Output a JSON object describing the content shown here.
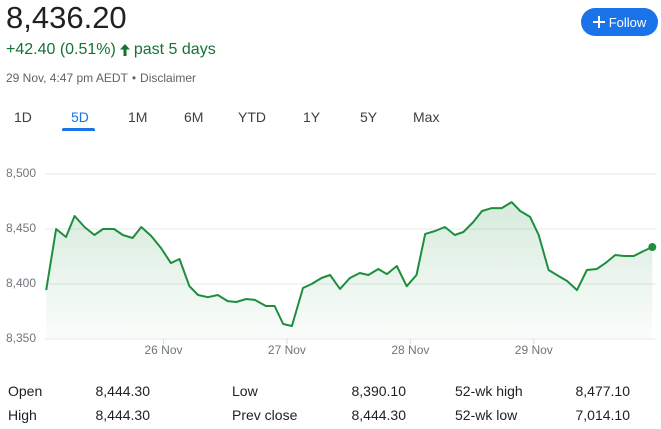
{
  "header": {
    "price": "8,436.20",
    "change": "+42.40 (0.51%)",
    "period": "past 5 days",
    "timestamp": "29 Nov, 4:47 pm AEDT",
    "separator": "•",
    "disclaimer": "Disclaimer",
    "follow": "Follow"
  },
  "tabs": {
    "items": [
      "1D",
      "5D",
      "1M",
      "6M",
      "YTD",
      "1Y",
      "5Y",
      "Max"
    ],
    "selected": "5D"
  },
  "chart_data": {
    "type": "line",
    "x": [
      25.05,
      25.13,
      25.21,
      25.28,
      25.36,
      25.44,
      25.51,
      25.6,
      25.67,
      25.75,
      25.82,
      25.9,
      25.98,
      26.06,
      26.13,
      26.21,
      26.28,
      26.36,
      26.44,
      26.52,
      26.59,
      26.67,
      26.74,
      26.83,
      26.9,
      26.97,
      27.04,
      27.13,
      27.2,
      27.28,
      27.35,
      27.43,
      27.51,
      27.59,
      27.66,
      27.74,
      27.81,
      27.89,
      27.97,
      28.05,
      28.12,
      28.2,
      28.28,
      28.36,
      28.43,
      28.51,
      28.58,
      28.66,
      28.74,
      28.82,
      28.89,
      28.97,
      29.04,
      29.12,
      29.2,
      29.27,
      29.35,
      29.43,
      29.51,
      29.58,
      29.66,
      29.73,
      29.81,
      29.89,
      29.96
    ],
    "series": [
      {
        "color": "#1e8e3e",
        "values": [
          8394.5,
          8450,
          8442.7,
          8461.8,
          8451.8,
          8444.5,
          8450,
          8450,
          8444.5,
          8441.8,
          8451.8,
          8443.6,
          8432.7,
          8419,
          8422.7,
          8398,
          8390,
          8388,
          8390,
          8384.5,
          8383.6,
          8386.4,
          8385.5,
          8380,
          8380,
          8363.6,
          8361.8,
          8396.4,
          8400,
          8405.5,
          8408.2,
          8395.5,
          8405.5,
          8410,
          8408.2,
          8413.6,
          8409,
          8416.4,
          8398,
          8408.2,
          8445.5,
          8448.2,
          8451.8,
          8444.5,
          8447.3,
          8456.4,
          8466.4,
          8469,
          8469,
          8474.5,
          8466.4,
          8461,
          8444.5,
          8412.7,
          8407.3,
          8402.7,
          8394.5,
          8412.7,
          8413.6,
          8419,
          8426.4,
          8425.5,
          8425.5,
          8430,
          8433.6
        ]
      }
    ],
    "xlim": [
      25.04,
      29.99
    ],
    "xticks": [
      {
        "value": 26,
        "label": "26 Nov"
      },
      {
        "value": 27,
        "label": "27 Nov"
      },
      {
        "value": 28,
        "label": "28 Nov"
      },
      {
        "value": 29,
        "label": "29 Nov"
      }
    ],
    "ylim": [
      8350,
      8500
    ],
    "yticks": [
      {
        "value": 8350,
        "label": "8,350"
      },
      {
        "value": 8400,
        "label": "8,400"
      },
      {
        "value": 8450,
        "label": "8,450"
      },
      {
        "value": 8500,
        "label": "8,500"
      }
    ],
    "grid": true
  },
  "stats": {
    "rows": [
      [
        [
          "Open",
          "8,444.30"
        ],
        [
          "Low",
          "8,390.10"
        ],
        [
          "52-wk high",
          "8,477.10"
        ]
      ],
      [
        [
          "High",
          "8,444.30"
        ],
        [
          "Prev close",
          "8,444.30"
        ],
        [
          "52-wk low",
          "7,014.10"
        ]
      ]
    ]
  }
}
